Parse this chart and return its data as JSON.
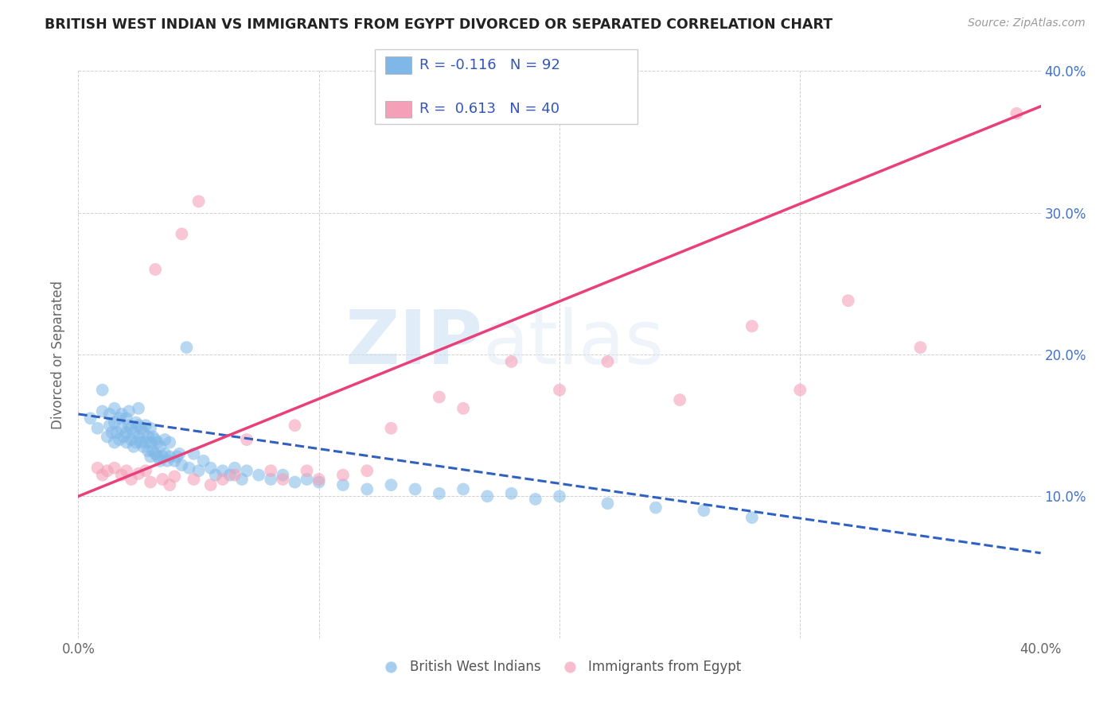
{
  "title": "BRITISH WEST INDIAN VS IMMIGRANTS FROM EGYPT DIVORCED OR SEPARATED CORRELATION CHART",
  "source": "Source: ZipAtlas.com",
  "ylabel": "Divorced or Separated",
  "watermark_zip": "ZIP",
  "watermark_atlas": "atlas",
  "xmin": 0.0,
  "xmax": 0.4,
  "ymin": 0.0,
  "ymax": 0.4,
  "blue_R": -0.116,
  "blue_N": 92,
  "pink_R": 0.613,
  "pink_N": 40,
  "blue_color": "#7fb8e8",
  "pink_color": "#f4a0b8",
  "blue_line_color": "#3060c0",
  "pink_line_color": "#e8407a",
  "legend_label_blue": "British West Indians",
  "legend_label_pink": "Immigrants from Egypt",
  "blue_scatter_x": [
    0.005,
    0.008,
    0.01,
    0.01,
    0.012,
    0.013,
    0.013,
    0.014,
    0.015,
    0.015,
    0.015,
    0.016,
    0.017,
    0.017,
    0.018,
    0.018,
    0.019,
    0.02,
    0.02,
    0.02,
    0.021,
    0.021,
    0.022,
    0.022,
    0.023,
    0.023,
    0.024,
    0.024,
    0.025,
    0.025,
    0.025,
    0.026,
    0.026,
    0.027,
    0.027,
    0.028,
    0.028,
    0.029,
    0.029,
    0.03,
    0.03,
    0.03,
    0.031,
    0.031,
    0.032,
    0.032,
    0.033,
    0.033,
    0.034,
    0.034,
    0.035,
    0.036,
    0.036,
    0.037,
    0.038,
    0.038,
    0.04,
    0.041,
    0.042,
    0.043,
    0.045,
    0.046,
    0.048,
    0.05,
    0.052,
    0.055,
    0.057,
    0.06,
    0.063,
    0.065,
    0.068,
    0.07,
    0.075,
    0.08,
    0.085,
    0.09,
    0.095,
    0.1,
    0.11,
    0.12,
    0.13,
    0.14,
    0.15,
    0.16,
    0.17,
    0.18,
    0.19,
    0.2,
    0.22,
    0.24,
    0.26,
    0.28
  ],
  "blue_scatter_y": [
    0.155,
    0.148,
    0.16,
    0.175,
    0.142,
    0.15,
    0.158,
    0.145,
    0.138,
    0.152,
    0.162,
    0.145,
    0.14,
    0.155,
    0.148,
    0.158,
    0.142,
    0.138,
    0.145,
    0.155,
    0.15,
    0.16,
    0.14,
    0.148,
    0.135,
    0.145,
    0.152,
    0.138,
    0.142,
    0.15,
    0.162,
    0.138,
    0.148,
    0.135,
    0.145,
    0.138,
    0.15,
    0.132,
    0.142,
    0.128,
    0.138,
    0.148,
    0.132,
    0.142,
    0.13,
    0.14,
    0.128,
    0.138,
    0.125,
    0.135,
    0.128,
    0.13,
    0.14,
    0.125,
    0.128,
    0.138,
    0.125,
    0.128,
    0.13,
    0.122,
    0.205,
    0.12,
    0.13,
    0.118,
    0.125,
    0.12,
    0.115,
    0.118,
    0.115,
    0.12,
    0.112,
    0.118,
    0.115,
    0.112,
    0.115,
    0.11,
    0.112,
    0.11,
    0.108,
    0.105,
    0.108,
    0.105,
    0.102,
    0.105,
    0.1,
    0.102,
    0.098,
    0.1,
    0.095,
    0.092,
    0.09,
    0.085
  ],
  "pink_scatter_x": [
    0.008,
    0.01,
    0.012,
    0.015,
    0.018,
    0.02,
    0.022,
    0.025,
    0.028,
    0.03,
    0.032,
    0.035,
    0.038,
    0.04,
    0.043,
    0.048,
    0.05,
    0.055,
    0.06,
    0.065,
    0.07,
    0.08,
    0.085,
    0.09,
    0.095,
    0.1,
    0.11,
    0.12,
    0.13,
    0.15,
    0.16,
    0.18,
    0.2,
    0.22,
    0.25,
    0.28,
    0.3,
    0.32,
    0.35,
    0.39
  ],
  "pink_scatter_y": [
    0.12,
    0.115,
    0.118,
    0.12,
    0.115,
    0.118,
    0.112,
    0.116,
    0.118,
    0.11,
    0.26,
    0.112,
    0.108,
    0.114,
    0.285,
    0.112,
    0.308,
    0.108,
    0.112,
    0.115,
    0.14,
    0.118,
    0.112,
    0.15,
    0.118,
    0.112,
    0.115,
    0.118,
    0.148,
    0.17,
    0.162,
    0.195,
    0.175,
    0.195,
    0.168,
    0.22,
    0.175,
    0.238,
    0.205,
    0.37
  ],
  "blue_trendline_x0": 0.0,
  "blue_trendline_y0": 0.158,
  "blue_trendline_x1": 0.4,
  "blue_trendline_y1": 0.06,
  "pink_trendline_x0": 0.0,
  "pink_trendline_y0": 0.1,
  "pink_trendline_x1": 0.4,
  "pink_trendline_y1": 0.375
}
